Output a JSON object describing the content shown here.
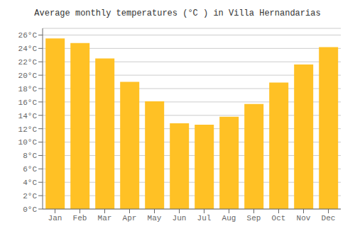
{
  "chart_data": {
    "type": "bar",
    "title": "Average monthly temperatures (°C ) in Villa Hernandarias",
    "categories": [
      "Jan",
      "Feb",
      "Mar",
      "Apr",
      "May",
      "Jun",
      "Jul",
      "Aug",
      "Sep",
      "Oct",
      "Nov",
      "Dec"
    ],
    "values": [
      25.5,
      24.8,
      22.5,
      19.0,
      16.1,
      12.8,
      12.6,
      13.8,
      15.7,
      18.9,
      21.6,
      24.2
    ],
    "color": "#FFC125",
    "ylim": [
      0,
      27
    ],
    "yticks": [
      {
        "value": 0,
        "label": "0°C"
      },
      {
        "value": 2,
        "label": "2°C"
      },
      {
        "value": 4,
        "label": "4°C"
      },
      {
        "value": 6,
        "label": "6°C"
      },
      {
        "value": 8,
        "label": "8°C"
      },
      {
        "value": 10,
        "label": "10°C"
      },
      {
        "value": 12,
        "label": "12°C"
      },
      {
        "value": 14,
        "label": "14°C"
      },
      {
        "value": 16,
        "label": "16°C"
      },
      {
        "value": 18,
        "label": "18°C"
      },
      {
        "value": 20,
        "label": "20°C"
      },
      {
        "value": 22,
        "label": "22°C"
      },
      {
        "value": 24,
        "label": "24°C"
      },
      {
        "value": 26,
        "label": "26°C"
      }
    ],
    "grid": true
  }
}
